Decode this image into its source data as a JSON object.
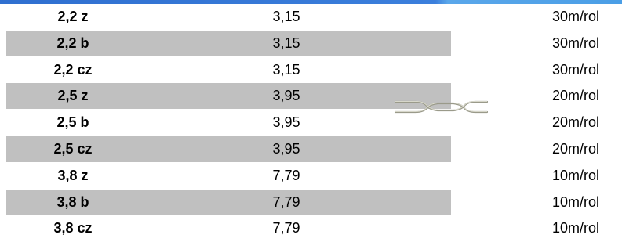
{
  "table": {
    "rows": [
      [
        "2,2 z",
        "3,15",
        "30m/rol"
      ],
      [
        "2,2 b",
        "3,15",
        "30m/rol"
      ],
      [
        "2,2 cz",
        "3,15",
        "30m/rol"
      ],
      [
        "2,5 z",
        "3,95",
        "20m/rol"
      ],
      [
        "2,5 b",
        "3,95",
        "20m/rol"
      ],
      [
        "2,5 cz",
        "3,95",
        "20m/rol"
      ],
      [
        "3,8 z",
        "7,79",
        "10m/rol"
      ],
      [
        "3,8 b",
        "7,79",
        "10m/rol"
      ],
      [
        "3,8 cz",
        "7,79",
        "10m/rol"
      ]
    ]
  }
}
